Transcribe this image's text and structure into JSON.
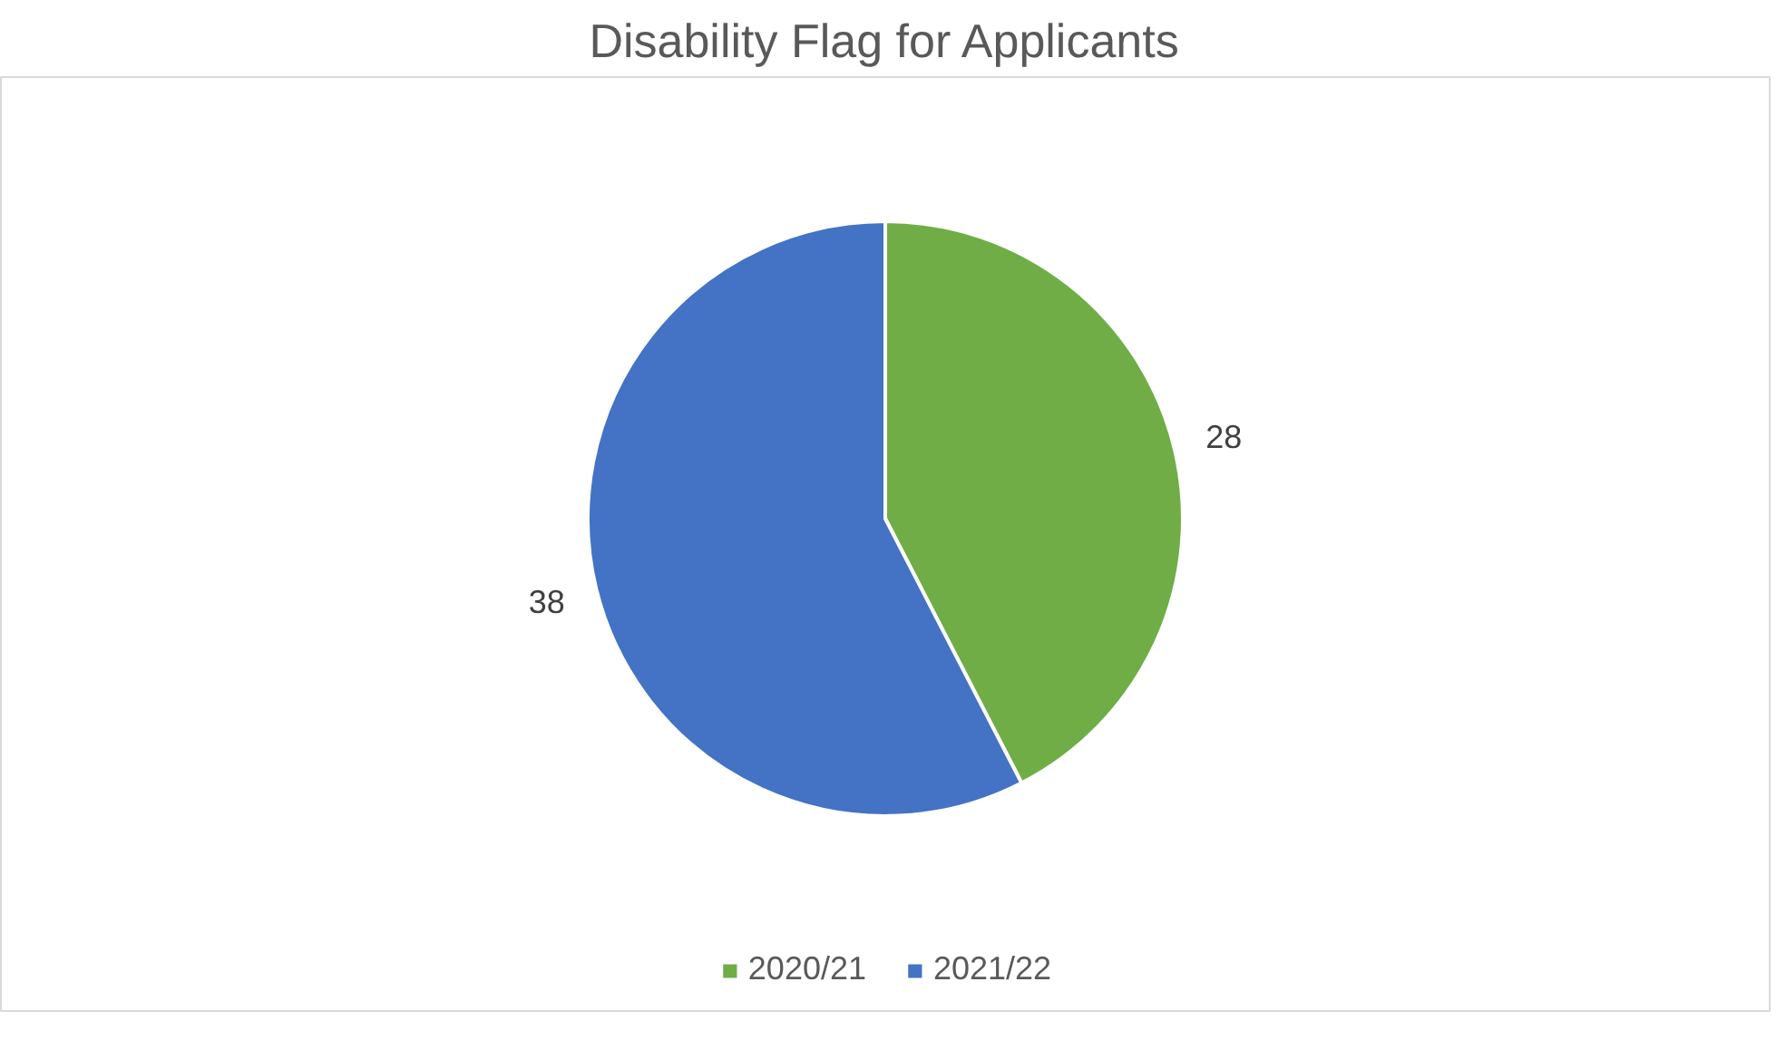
{
  "chart_data": {
    "type": "pie",
    "title": "Disability Flag for Applicants",
    "categories": [
      "2020/21",
      "2021/22"
    ],
    "values": [
      28,
      38
    ],
    "colors": [
      "#70ad47",
      "#4472c4"
    ],
    "data_labels": true,
    "legend": "bottom"
  }
}
